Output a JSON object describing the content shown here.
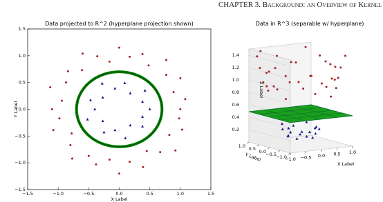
{
  "header": {
    "running_head": "CHAPTER 3. Background: an Overview of Kernel"
  },
  "chart_data": [
    {
      "type": "scatter",
      "title": "Data projected to R^2 (hyperplane projection shown)",
      "x_label": "X Label",
      "y_label": "Y Label",
      "xlim": [
        -1.5,
        1.5
      ],
      "ylim": [
        -1.5,
        1.5
      ],
      "xticks": [
        {
          "value": -1.5,
          "label": "−1.5"
        },
        {
          "value": -1,
          "label": "−1.0"
        },
        {
          "value": -0.5,
          "label": "−0.5"
        },
        {
          "value": 0,
          "label": "0.0"
        },
        {
          "value": 0.5,
          "label": "0.5"
        },
        {
          "value": 1,
          "label": "1.0"
        },
        {
          "value": 1.5,
          "label": "1.5"
        }
      ],
      "yticks": [
        {
          "value": -1.5,
          "label": "−1.5"
        },
        {
          "value": -1,
          "label": "−1.0"
        },
        {
          "value": -0.5,
          "label": "−0.5"
        },
        {
          "value": 0,
          "label": "0.0"
        },
        {
          "value": 0.5,
          "label": "0.5"
        },
        {
          "value": 1,
          "label": "1.0"
        },
        {
          "value": 1.5,
          "label": "1.5"
        }
      ],
      "hyperplane_radius": 0.7,
      "hyperplane_color": "#008000",
      "series": [
        {
          "color": "#a52020",
          "marker": "circle",
          "x": [
            1.0,
            1.08,
            0.89,
            1.0,
            0.77,
            0.77,
            0.48,
            0.38,
            0.17,
            0.0,
            -0.16,
            -0.36,
            -0.6,
            -0.61,
            -0.84,
            -0.87,
            -1.13,
            -0.94,
            -1.1,
            -0.98,
            -1.08,
            -0.78,
            -0.8,
            -0.77,
            -0.5,
            -0.38,
            -0.16,
            0.0,
            0.17,
            0.39,
            0.45,
            0.67,
            0.92,
            0.82,
            1.03,
            0.98
          ],
          "values": [
            0.0,
            0.19,
            0.32,
            0.58,
            0.64,
            0.92,
            0.82,
            1.03,
            0.98,
            1.15,
            0.89,
            0.99,
            1.04,
            0.73,
            0.71,
            0.5,
            0.41,
            0.16,
            0.0,
            -0.17,
            -0.39,
            -0.45,
            -0.67,
            -0.92,
            -0.87,
            -1.03,
            -0.94,
            -1.2,
            -0.98,
            -1.08,
            -0.78,
            -0.8,
            -0.77,
            -0.48,
            -0.38,
            -0.17
          ]
        },
        {
          "color": "#1a1a8c",
          "marker": "triangle",
          "x": [
            0.5,
            0.38,
            0.42,
            0.18,
            0.09,
            -0.07,
            -0.28,
            -0.27,
            -0.47,
            -0.4,
            -0.52,
            -0.27,
            -0.25,
            -0.07,
            0.1,
            0.18,
            0.38,
            0.38
          ],
          "values": [
            0.0,
            0.14,
            0.35,
            0.3,
            0.49,
            0.39,
            0.48,
            0.22,
            0.17,
            0.0,
            -0.19,
            -0.22,
            -0.43,
            -0.39,
            -0.54,
            -0.3,
            -0.32,
            -0.14
          ]
        }
      ]
    },
    {
      "type": "scatter3d",
      "title": "Data in R^3 (separable w/ hyperplane)",
      "x_label": "X Label",
      "y_label": "Y Label",
      "z_label": "Z Label",
      "xlim": [
        -1,
        1
      ],
      "ylim": [
        -1,
        1
      ],
      "zlim": [
        0,
        1.5
      ],
      "xticks": [
        {
          "value": -1,
          "label": "−1.0"
        },
        {
          "value": -0.5,
          "label": "−0.5"
        },
        {
          "value": 0,
          "label": "0.0"
        },
        {
          "value": 0.5,
          "label": "0.5"
        },
        {
          "value": 1,
          "label": "1.0"
        }
      ],
      "yticks": [
        {
          "value": 1,
          "label": "1.0"
        },
        {
          "value": 0.5,
          "label": "0.5"
        },
        {
          "value": 0,
          "label": "0.0"
        },
        {
          "value": -0.5,
          "label": "−0.5"
        },
        {
          "value": -1,
          "label": "−1.0"
        }
      ],
      "zticks": [
        0.2,
        0.4,
        0.6,
        0.8,
        {
          "value": 1,
          "label": "1.0"
        },
        1.2,
        1.4
      ],
      "plane_z": 0.49,
      "plane_color": "#109a10",
      "series": [
        {
          "color": "#a52020",
          "marker": "circle",
          "x": [
            1.0,
            1.08,
            0.89,
            1.0,
            0.77,
            0.77,
            0.48,
            0.38,
            0.17,
            0.0,
            -0.16,
            -0.36,
            -0.6,
            -0.61,
            -0.84,
            -0.87,
            -1.13,
            -0.94,
            -1.1,
            -0.98,
            -1.08,
            -0.78,
            -0.8,
            -0.77,
            -0.5,
            -0.38,
            -0.16,
            0.0,
            0.17,
            0.39,
            0.45,
            0.67,
            0.92,
            0.82,
            1.03,
            0.98
          ],
          "y": [
            0.0,
            0.19,
            0.32,
            0.58,
            0.64,
            0.92,
            0.82,
            1.03,
            0.98,
            1.15,
            0.89,
            0.99,
            1.04,
            0.73,
            0.71,
            0.5,
            0.41,
            0.16,
            0.0,
            -0.17,
            -0.39,
            -0.45,
            -0.67,
            -0.92,
            -0.87,
            -1.03,
            -0.94,
            -1.2,
            -0.98,
            -1.08,
            -0.78,
            -0.8,
            -0.77,
            -0.48,
            -0.38,
            -0.17
          ],
          "z": [
            1.0,
            1.21,
            0.9,
            1.32,
            1.0,
            1.44,
            0.9,
            1.21,
            1.0,
            1.32,
            0.81,
            1.1,
            1.44,
            0.9,
            1.21,
            1.0,
            1.44,
            0.9,
            1.21,
            1.0,
            1.32,
            0.81,
            1.1,
            1.44,
            1.0,
            1.21,
            0.9,
            1.44,
            1.0,
            1.32,
            0.81,
            1.1,
            1.44,
            0.9,
            1.21,
            1.0
          ]
        },
        {
          "color": "#1a1a8c",
          "marker": "triangle",
          "x": [
            0.5,
            0.38,
            0.42,
            0.18,
            0.09,
            -0.07,
            -0.28,
            -0.27,
            -0.47,
            -0.4,
            -0.52,
            -0.27,
            -0.25,
            -0.07,
            0.1,
            0.18,
            0.38,
            0.38
          ],
          "y": [
            0.0,
            0.14,
            0.35,
            0.3,
            0.49,
            0.39,
            0.48,
            0.22,
            0.17,
            0.0,
            -0.19,
            -0.22,
            -0.43,
            -0.39,
            -0.54,
            -0.3,
            -0.32,
            -0.14
          ],
          "z": [
            0.25,
            0.16,
            0.3,
            0.12,
            0.25,
            0.16,
            0.3,
            0.12,
            0.25,
            0.16,
            0.3,
            0.12,
            0.25,
            0.16,
            0.3,
            0.12,
            0.25,
            0.16
          ]
        }
      ]
    }
  ]
}
